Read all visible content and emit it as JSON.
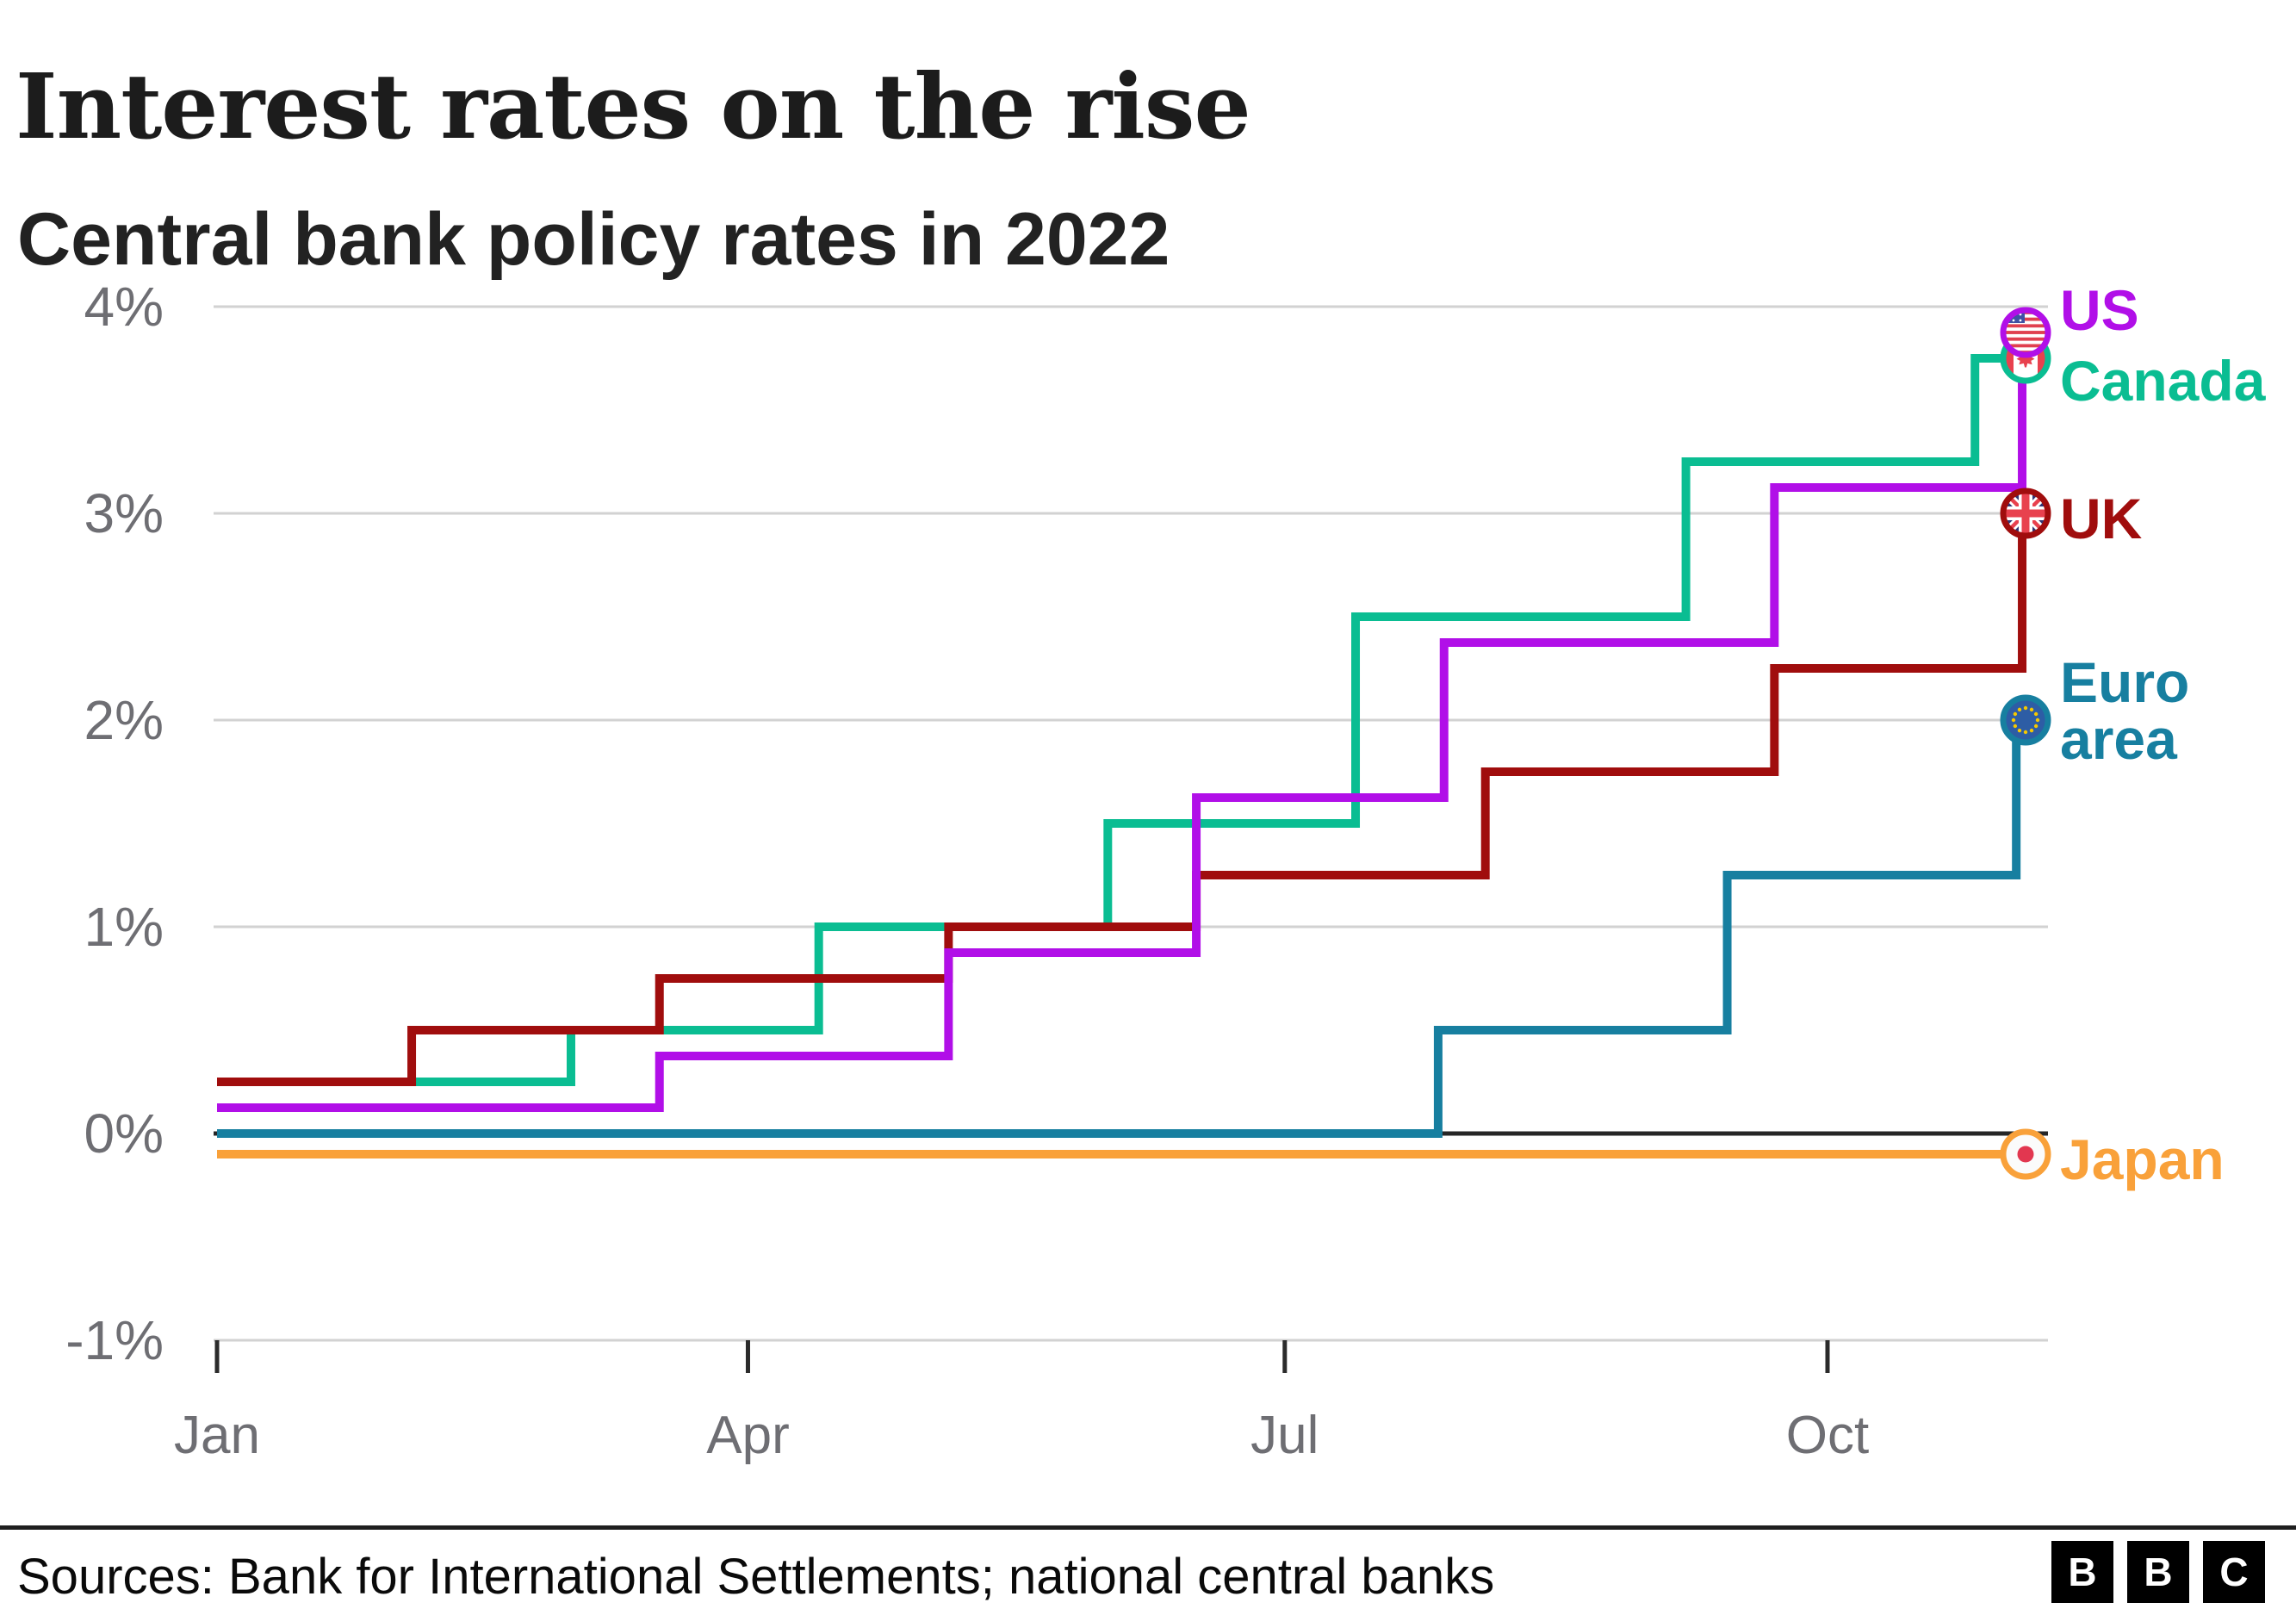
{
  "header": {
    "title": "Interest rates on the rise",
    "subtitle": "Central bank policy rates in 2022"
  },
  "chart_data": {
    "type": "line",
    "subtype": "step",
    "title": "Interest rates on the rise",
    "subtitle": "Central bank policy rates in 2022",
    "xlabel": "",
    "ylabel": "",
    "x_axis": {
      "unit": "month of 2022",
      "ticks": [
        {
          "label": "Jan",
          "day": 0
        },
        {
          "label": "Apr",
          "day": 90
        },
        {
          "label": "Jul",
          "day": 181
        },
        {
          "label": "Oct",
          "day": 273
        }
      ],
      "domain_days": [
        0,
        310
      ]
    },
    "y_axis": {
      "unit": "percent",
      "ticks": [
        {
          "label": "4%",
          "value": 4
        },
        {
          "label": "3%",
          "value": 3
        },
        {
          "label": "2%",
          "value": 2
        },
        {
          "label": "1%",
          "value": 1
        },
        {
          "label": "0%",
          "value": 0
        },
        {
          "label": "-1%",
          "value": -1
        }
      ],
      "range": [
        -1,
        4
      ]
    },
    "grid": true,
    "legend_position": "end-of-line labels with flag markers",
    "zero_line_color": "#262626",
    "gridline_color": "#d2d2d2",
    "axis_text_color": "#6e6e73",
    "series": [
      {
        "name": "Japan",
        "flag": "japan",
        "color": "#f9a13a",
        "label_lines": [
          "Japan"
        ],
        "end_value": -0.1,
        "end_day": 310,
        "points_day_value": [
          [
            0,
            -0.1
          ]
        ]
      },
      {
        "name": "Euro area",
        "flag": "eu",
        "color": "#177fa0",
        "label_lines": [
          "Euro",
          "area"
        ],
        "end_value": 2.0,
        "end_day": 310,
        "points_day_value": [
          [
            0,
            0.0
          ],
          [
            207,
            0.5
          ],
          [
            256,
            1.25
          ],
          [
            305,
            2.0
          ]
        ]
      },
      {
        "name": "Canada",
        "flag": "canada",
        "color": "#0abd92",
        "label_lines": [
          "Canada"
        ],
        "end_value": 3.75,
        "end_day": 310,
        "points_day_value": [
          [
            0,
            0.25
          ],
          [
            60,
            0.5
          ],
          [
            102,
            1.0
          ],
          [
            151,
            1.5
          ],
          [
            193,
            2.5
          ],
          [
            249,
            3.25
          ],
          [
            298,
            3.75
          ]
        ]
      },
      {
        "name": "UK",
        "flag": "uk",
        "color": "#a00d0d",
        "label_lines": [
          "UK"
        ],
        "end_value": 3.0,
        "end_day": 310,
        "points_day_value": [
          [
            0,
            0.25
          ],
          [
            33,
            0.5
          ],
          [
            75,
            0.75
          ],
          [
            124,
            1.0
          ],
          [
            166,
            1.25
          ],
          [
            215,
            1.75
          ],
          [
            264,
            2.25
          ],
          [
            306,
            3.0
          ]
        ]
      },
      {
        "name": "US",
        "flag": "us",
        "color": "#b10fe8",
        "label_lines": [
          "US"
        ],
        "end_value": 3.875,
        "end_day": 310,
        "points_day_value": [
          [
            0,
            0.125
          ],
          [
            75,
            0.375
          ],
          [
            124,
            0.875
          ],
          [
            166,
            1.625
          ],
          [
            208,
            2.375
          ],
          [
            264,
            3.125
          ],
          [
            306,
            3.875
          ]
        ]
      }
    ]
  },
  "footer": {
    "sources": "Sources: Bank for International Settlements; national central banks",
    "logo_letters": [
      "B",
      "B",
      "C"
    ]
  }
}
